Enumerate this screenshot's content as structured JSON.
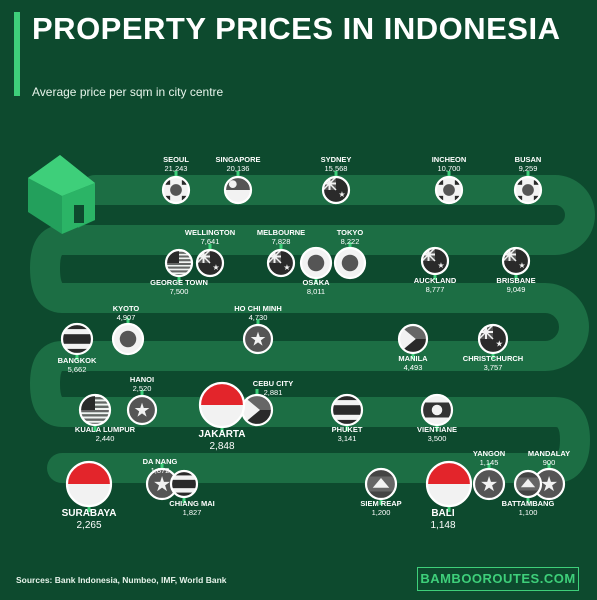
{
  "header": {
    "title": "PROPERTY PRICES IN INDONESIA",
    "subtitle": "Average price per sqm in city centre"
  },
  "footer": {
    "sources": "Sources: Bank Indonesia, Numbeo, IMF, World Bank",
    "brand": "BAMBOOROUTES.COM"
  },
  "colors": {
    "background": "#0d4a2e",
    "road": "#1c6e44",
    "accent": "#3ecf7a",
    "house": "#2bb466"
  },
  "chart_data": {
    "type": "table",
    "unit": "Average price per sqm in city centre",
    "cities": [
      {
        "name": "SEOUL",
        "price": "21,243",
        "flag": "south-korea-flag",
        "row": 1
      },
      {
        "name": "SINGAPORE",
        "price": "20,136",
        "flag": "singapore-flag",
        "row": 1
      },
      {
        "name": "SYDNEY",
        "price": "15,568",
        "flag": "australia-flag",
        "row": 1
      },
      {
        "name": "INCHEON",
        "price": "10,700",
        "flag": "south-korea-flag",
        "row": 1
      },
      {
        "name": "BUSAN",
        "price": "9,259",
        "flag": "south-korea-flag",
        "row": 1
      },
      {
        "name": "BRISBANE",
        "price": "9,049",
        "flag": "australia-flag",
        "row": 2
      },
      {
        "name": "AUCKLAND",
        "price": "8,777",
        "flag": "new-zealand-flag",
        "row": 2
      },
      {
        "name": "TOKYO",
        "price": "8,222",
        "flag": "japan-flag",
        "row": 2
      },
      {
        "name": "OSAKA",
        "price": "8,011",
        "flag": "japan-flag",
        "row": 2
      },
      {
        "name": "MELBOURNE",
        "price": "7,828",
        "flag": "australia-flag",
        "row": 2
      },
      {
        "name": "WELLINGTON",
        "price": "7,641",
        "flag": "new-zealand-flag",
        "row": 2
      },
      {
        "name": "GEORGE TOWN",
        "price": "7,500",
        "flag": "malaysia-flag",
        "row": 2
      },
      {
        "name": "KYOTO",
        "price": "4,907",
        "flag": "japan-flag",
        "row": 3
      },
      {
        "name": "HO CHI MINH",
        "price": "4,730",
        "flag": "vietnam-flag",
        "row": 3
      },
      {
        "name": "MANILA",
        "price": "4,493",
        "flag": "philippines-flag",
        "row": 3
      },
      {
        "name": "CHRISTCHURCH",
        "price": "3,757",
        "flag": "new-zealand-flag",
        "row": 3
      },
      {
        "name": "BANGKOK",
        "price": "5,662",
        "flag": "thailand-flag",
        "row": 3
      },
      {
        "name": "HANOI",
        "price": "2,520",
        "flag": "vietnam-flag",
        "row": 4
      },
      {
        "name": "CEBU CITY",
        "price": "2,881",
        "flag": "philippines-flag",
        "row": 4
      },
      {
        "name": "JAKARTA",
        "price": "2,848",
        "flag": "indonesia-flag",
        "row": 4
      },
      {
        "name": "PHUKET",
        "price": "3,141",
        "flag": "thailand-flag",
        "row": 4
      },
      {
        "name": "VIENTIANE",
        "price": "3,500",
        "flag": "laos-flag",
        "row": 4
      },
      {
        "name": "KUALA LUMPUR",
        "price": "2,440",
        "flag": "malaysia-flag",
        "row": 4
      },
      {
        "name": "MANDALAY",
        "price": "900",
        "flag": "myanmar-flag",
        "row": 5
      },
      {
        "name": "YANGON",
        "price": "1,145",
        "flag": "myanmar-flag",
        "row": 5
      },
      {
        "name": "BATTAMBANG",
        "price": "1,100",
        "flag": "cambodia-flag",
        "row": 5
      },
      {
        "name": "BALI",
        "price": "1,148",
        "flag": "indonesia-flag",
        "row": 5
      },
      {
        "name": "SIEM REAP",
        "price": "1,200",
        "flag": "cambodia-flag",
        "row": 5
      },
      {
        "name": "DA NANG",
        "price": "1,872",
        "flag": "vietnam-flag",
        "row": 5
      },
      {
        "name": "CHIANG MAI",
        "price": "1,827",
        "flag": "thailand-flag",
        "row": 5
      },
      {
        "name": "SURABAYA",
        "price": "2,265",
        "flag": "indonesia-flag",
        "row": 5
      }
    ]
  }
}
